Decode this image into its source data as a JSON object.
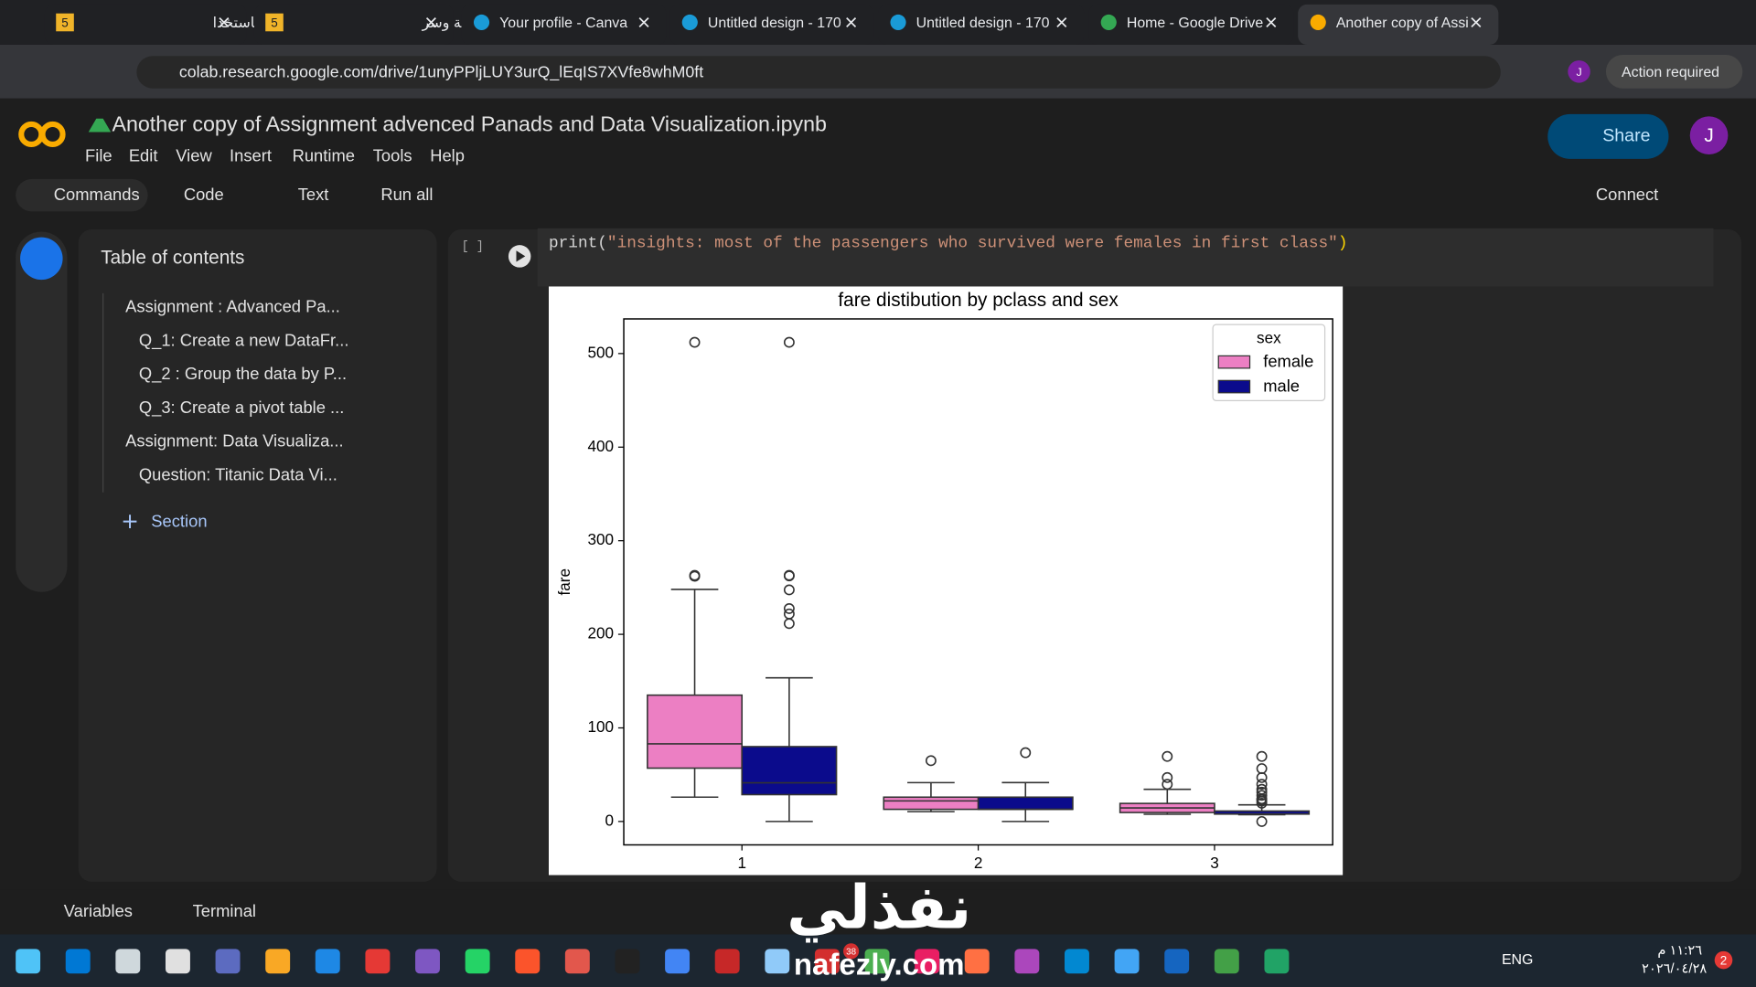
{
  "browser": {
    "tabs": [
      "تحليل البيانات باستخدا",
      "إدخال بيانات بدقة وسر",
      "Your profile - Canva",
      "Untitled design - 170",
      "Untitled design - 170",
      "Home - Google Drive",
      "Another copy of Assi"
    ],
    "tab_badges": [
      "5",
      "5"
    ],
    "url": "colab.research.google.com/drive/1unyPPljLUY3urQ_lEqIS7XVfe8whM0ft",
    "profile": "J",
    "action": "Action required"
  },
  "notebook": {
    "title": "Another copy of Assignment advenced Panads and Data Visualization.ipynb",
    "menu": [
      "File",
      "Edit",
      "View",
      "Insert",
      "Runtime",
      "Tools",
      "Help"
    ],
    "share": "Share",
    "avatar": "J",
    "toolbar": [
      "Commands",
      "Code",
      "Text",
      "Run all"
    ],
    "connect": "Connect"
  },
  "toc": {
    "title": "Table of contents",
    "items": [
      {
        "text": "Assignment : Advanced Pa...",
        "level": 1
      },
      {
        "text": "Q_1: Create a new DataFr...",
        "level": 2
      },
      {
        "text": "Q_2 : Group the data by P...",
        "level": 2
      },
      {
        "text": "Q_3: Create a pivot table ...",
        "level": 2
      },
      {
        "text": "Assignment: Data Visualiza...",
        "level": 1
      },
      {
        "text": "Question: Titanic Data Vi...",
        "level": 2
      }
    ],
    "add_section": "Section"
  },
  "cell": {
    "prompt": "[ ]",
    "code": [
      "print(",
      "\"insights: most of the passengers who survived were females in first class\"",
      ")"
    ]
  },
  "chart_data": {
    "type": "box",
    "title": "fare distibution by pclass and sex",
    "ylabel": "fare",
    "categories": [
      "1",
      "2",
      "3"
    ],
    "ylim": [
      -25,
      537
    ],
    "yticks": [
      0,
      100,
      200,
      300,
      400,
      500
    ],
    "legend_title": "sex",
    "legend": "upper right",
    "series": [
      {
        "name": "female",
        "color": "#ec7fc3",
        "boxes": [
          {
            "whislo": 26,
            "q1": 57,
            "med": 83,
            "q3": 135,
            "whishi": 248,
            "fliers": [
              262,
              263,
              512
            ]
          },
          {
            "whislo": 10.5,
            "q1": 13,
            "med": 22,
            "q3": 26,
            "whishi": 41.5,
            "fliers": [
              65
            ]
          },
          {
            "whislo": 7.7,
            "q1": 9.6,
            "med": 14.5,
            "q3": 19.3,
            "whishi": 34.4,
            "fliers": [
              39.7,
              46.9,
              69.5
            ]
          }
        ]
      },
      {
        "name": "male",
        "color": "#0b0b8c",
        "boxes": [
          {
            "whislo": 0,
            "q1": 28.7,
            "med": 41.3,
            "q3": 80,
            "whishi": 153.5,
            "fliers": [
              211.5,
              221.8,
              227.5,
              247.5,
              262.4,
              263,
              512
            ]
          },
          {
            "whislo": 0,
            "q1": 13,
            "med": 13,
            "q3": 26,
            "whishi": 41.6,
            "fliers": [
              73.5
            ]
          },
          {
            "whislo": 7.2,
            "q1": 7.9,
            "med": 8.05,
            "q3": 11.2,
            "whishi": 17.8,
            "fliers": [
              0,
              19.5,
              21.7,
              23.4,
              24.2,
              27.9,
              31.3,
              34.4,
              39.7,
              46.9,
              56.5,
              69.5
            ]
          }
        ]
      }
    ]
  },
  "status_bar": [
    "Variables",
    "Terminal"
  ],
  "taskbar": {
    "language": "ENG",
    "time": "١١:٢٦ م",
    "date": "٢٠٢٦/٠٤/٢٨",
    "notifications": "2",
    "badge": "38"
  },
  "watermark": {
    "brand": "نفذلي",
    "site": "nafezly.com"
  }
}
